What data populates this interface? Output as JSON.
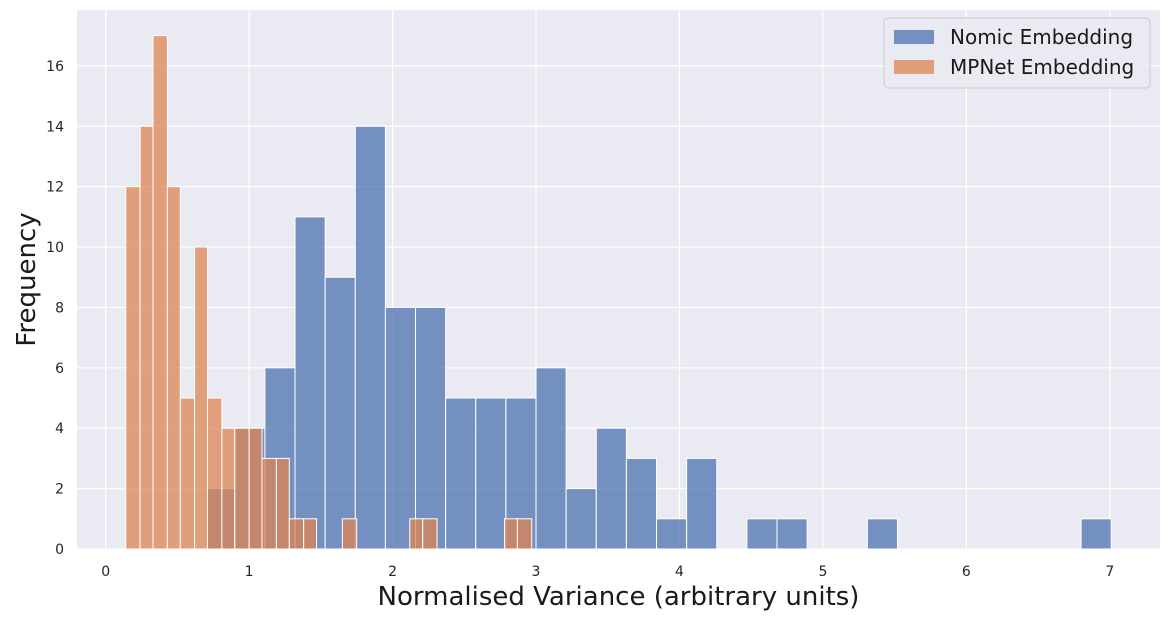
{
  "chart_data": {
    "type": "bar",
    "subtype": "histogram",
    "title": "",
    "xlabel": "Normalised Variance (arbitrary units)",
    "ylabel": "Frequency",
    "xlim": [
      -0.2,
      7.35
    ],
    "ylim": [
      0,
      17.85
    ],
    "xticks": [
      0,
      1,
      2,
      3,
      4,
      5,
      6,
      7
    ],
    "yticks": [
      0,
      2,
      4,
      6,
      8,
      10,
      12,
      14,
      16
    ],
    "grid": true,
    "background": "#eaeaf2",
    "legend_position": "top-right",
    "series": [
      {
        "name": "Nomic Embedding",
        "color": "#4c72b0",
        "bins": [
          {
            "x0": 0.71,
            "x1": 0.9,
            "count": 2
          },
          {
            "x0": 0.9,
            "x1": 1.11,
            "count": 4
          },
          {
            "x0": 1.11,
            "x1": 1.32,
            "count": 6
          },
          {
            "x0": 1.32,
            "x1": 1.53,
            "count": 11
          },
          {
            "x0": 1.53,
            "x1": 1.74,
            "count": 9
          },
          {
            "x0": 1.74,
            "x1": 1.95,
            "count": 14
          },
          {
            "x0": 1.95,
            "x1": 2.16,
            "count": 8
          },
          {
            "x0": 2.16,
            "x1": 2.37,
            "count": 8
          },
          {
            "x0": 2.37,
            "x1": 2.58,
            "count": 5
          },
          {
            "x0": 2.58,
            "x1": 2.79,
            "count": 5
          },
          {
            "x0": 2.79,
            "x1": 3.0,
            "count": 5
          },
          {
            "x0": 3.0,
            "x1": 3.21,
            "count": 6
          },
          {
            "x0": 3.21,
            "x1": 3.42,
            "count": 2
          },
          {
            "x0": 3.42,
            "x1": 3.63,
            "count": 4
          },
          {
            "x0": 3.63,
            "x1": 3.84,
            "count": 3
          },
          {
            "x0": 3.84,
            "x1": 4.05,
            "count": 1
          },
          {
            "x0": 4.05,
            "x1": 4.26,
            "count": 3
          },
          {
            "x0": 4.47,
            "x1": 4.68,
            "count": 1
          },
          {
            "x0": 4.68,
            "x1": 4.89,
            "count": 1
          },
          {
            "x0": 5.31,
            "x1": 5.52,
            "count": 1
          },
          {
            "x0": 6.8,
            "x1": 7.01,
            "count": 1
          }
        ]
      },
      {
        "name": "MPNet Embedding",
        "color": "#dd8452",
        "bins": [
          {
            "x0": 0.14,
            "x1": 0.24,
            "count": 12
          },
          {
            "x0": 0.24,
            "x1": 0.33,
            "count": 14
          },
          {
            "x0": 0.33,
            "x1": 0.43,
            "count": 17
          },
          {
            "x0": 0.43,
            "x1": 0.52,
            "count": 12
          },
          {
            "x0": 0.52,
            "x1": 0.62,
            "count": 5
          },
          {
            "x0": 0.62,
            "x1": 0.71,
            "count": 10
          },
          {
            "x0": 0.71,
            "x1": 0.81,
            "count": 5
          },
          {
            "x0": 0.81,
            "x1": 0.9,
            "count": 4
          },
          {
            "x0": 0.9,
            "x1": 1.0,
            "count": 4
          },
          {
            "x0": 1.0,
            "x1": 1.09,
            "count": 4
          },
          {
            "x0": 1.09,
            "x1": 1.19,
            "count": 3
          },
          {
            "x0": 1.19,
            "x1": 1.28,
            "count": 3
          },
          {
            "x0": 1.28,
            "x1": 1.38,
            "count": 1
          },
          {
            "x0": 1.38,
            "x1": 1.47,
            "count": 1
          },
          {
            "x0": 1.65,
            "x1": 1.75,
            "count": 1
          },
          {
            "x0": 2.12,
            "x1": 2.21,
            "count": 1
          },
          {
            "x0": 2.21,
            "x1": 2.31,
            "count": 1
          },
          {
            "x0": 2.78,
            "x1": 2.87,
            "count": 1
          },
          {
            "x0": 2.87,
            "x1": 2.97,
            "count": 1
          }
        ]
      }
    ]
  }
}
